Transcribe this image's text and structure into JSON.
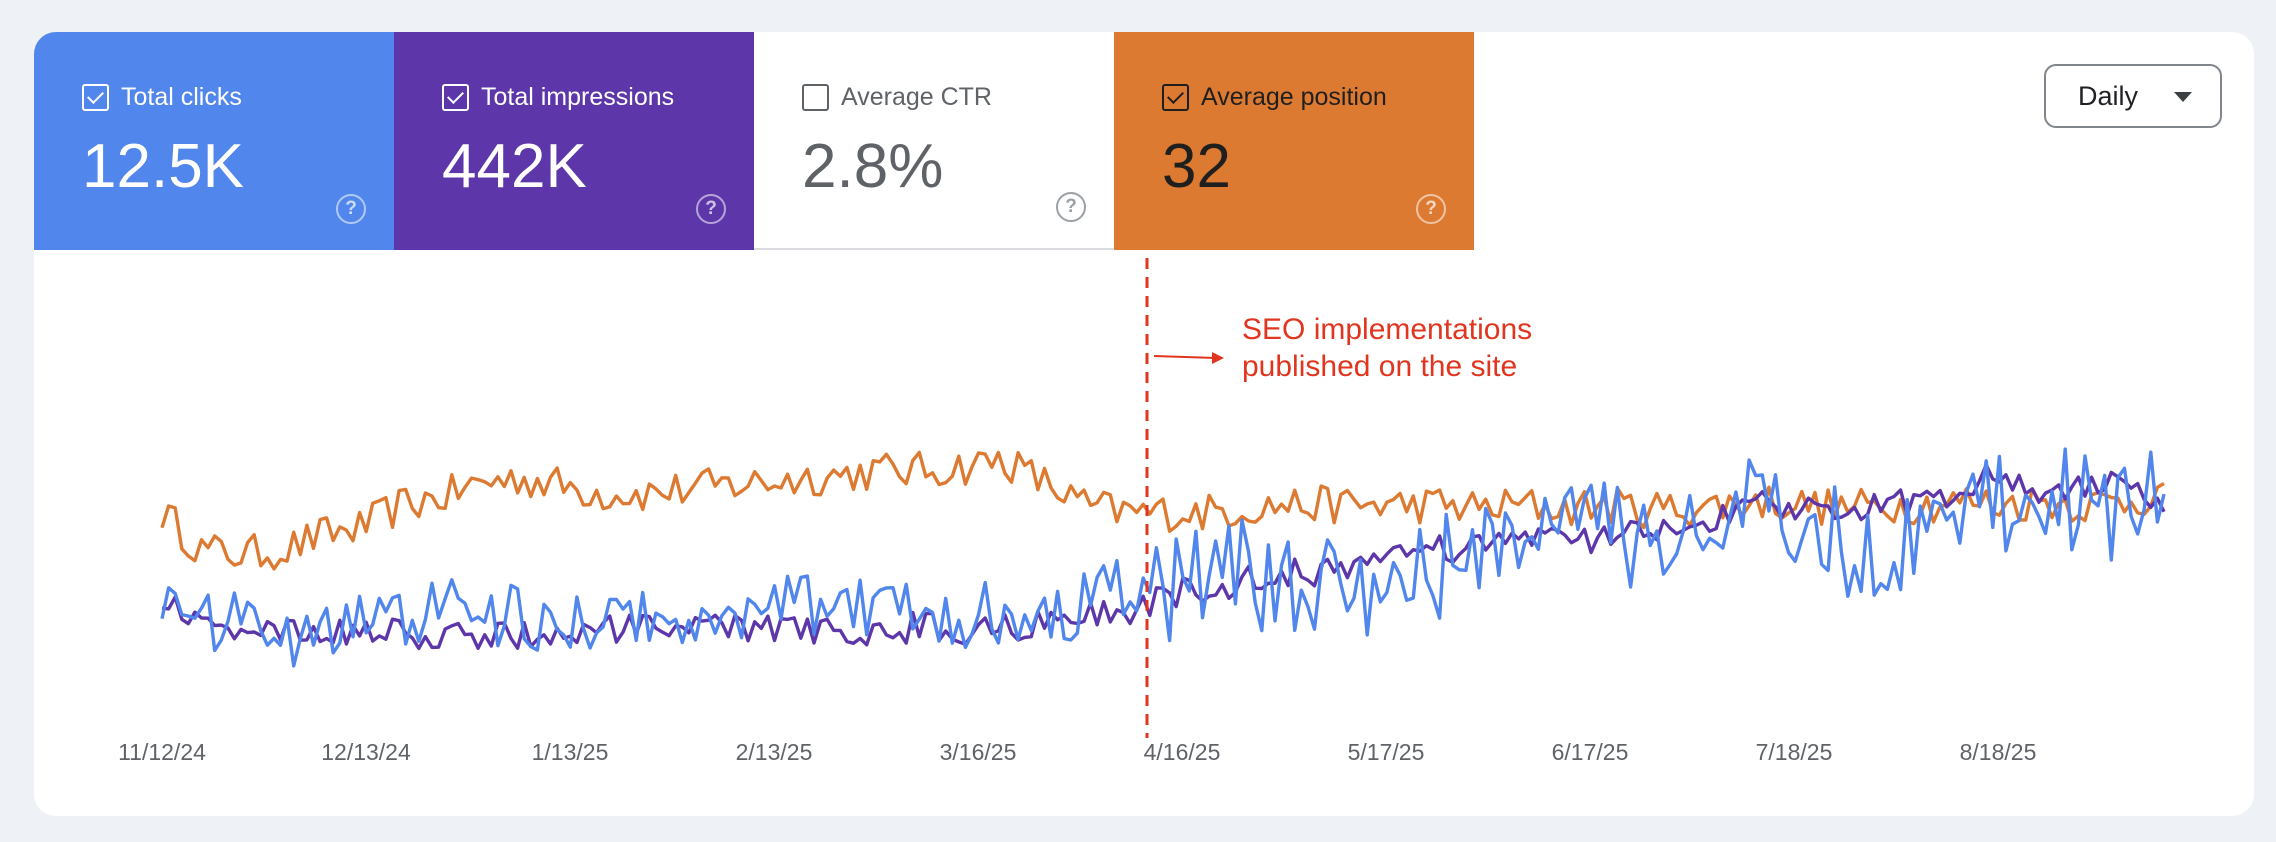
{
  "tiles": {
    "clicks": {
      "label": "Total clicks",
      "value": "12.5K",
      "checked": true,
      "color": "#5186ec"
    },
    "impressions": {
      "label": "Total impressions",
      "value": "442K",
      "checked": true,
      "color": "#5d37a9"
    },
    "ctr": {
      "label": "Average CTR",
      "value": "2.8%",
      "checked": false,
      "color": "#ffffff"
    },
    "position": {
      "label": "Average position",
      "value": "32",
      "checked": true,
      "color": "#dd7a32"
    },
    "help_icon": "?"
  },
  "period_select": {
    "value": "Daily"
  },
  "annotation": {
    "line1": "SEO implementations",
    "line2": "published on the site",
    "date": "4/16/25",
    "color": "#e1351f"
  },
  "chart_data": {
    "type": "line",
    "x_start": "11/12/24",
    "x_end": "9/10/25",
    "x_ticks": [
      "11/12/24",
      "12/13/24",
      "1/13/25",
      "2/13/25",
      "3/16/25",
      "4/16/25",
      "5/17/25",
      "6/17/25",
      "7/18/25",
      "8/18/25"
    ],
    "y_axis_shown": false,
    "grid": false,
    "series": [
      {
        "name": "Total clicks",
        "color": "#5186ec",
        "values": [
          0.21,
          0.12,
          0.12,
          0.1,
          0.12,
          0.16,
          0.12,
          0.22,
          0.14,
          0.14,
          0.12,
          0.14,
          0.14,
          0.16,
          0.14,
          0.14,
          0.2,
          0.16,
          0.18,
          0.16,
          0.15,
          0.16,
          0.15,
          0.18,
          0.22,
          0.18,
          0.26,
          0.26,
          0.24,
          0.24,
          0.24,
          0.24,
          0.27,
          0.36,
          0.33,
          0.38,
          0.4,
          0.32,
          0.36,
          0.38,
          0.44,
          0.4,
          0.34,
          0.33,
          0.32,
          0.39,
          0.44,
          0.46,
          0.43,
          0.44,
          0.46
        ],
        "value_scale_note": "visual level 0-1"
      },
      {
        "name": "Total impressions",
        "color": "#5d37a9",
        "values": [
          0.2,
          0.12,
          0.12,
          0.1,
          0.1,
          0.11,
          0.1,
          0.09,
          0.1,
          0.1,
          0.1,
          0.11,
          0.11,
          0.11,
          0.12,
          0.11,
          0.12,
          0.1,
          0.11,
          0.12,
          0.11,
          0.12,
          0.13,
          0.14,
          0.16,
          0.2,
          0.22,
          0.24,
          0.26,
          0.26,
          0.3,
          0.32,
          0.32,
          0.34,
          0.36,
          0.34,
          0.36,
          0.36,
          0.38,
          0.42,
          0.44,
          0.42,
          0.44,
          0.44,
          0.46,
          0.48,
          0.54,
          0.44,
          0.5,
          0.5,
          0.45
        ]
      },
      {
        "name": "Average position",
        "color": "#dd7a32",
        "values": [
          0.42,
          0.32,
          0.31,
          0.32,
          0.36,
          0.38,
          0.44,
          0.46,
          0.5,
          0.51,
          0.49,
          0.47,
          0.47,
          0.48,
          0.49,
          0.5,
          0.51,
          0.52,
          0.53,
          0.53,
          0.54,
          0.56,
          0.5,
          0.44,
          0.42,
          0.42,
          0.42,
          0.43,
          0.44,
          0.44,
          0.44,
          0.44,
          0.44,
          0.43,
          0.44,
          0.43,
          0.44,
          0.43,
          0.43,
          0.44,
          0.45,
          0.44,
          0.43,
          0.44,
          0.44,
          0.45,
          0.44,
          0.45,
          0.44,
          0.45,
          0.47
        ]
      }
    ]
  }
}
